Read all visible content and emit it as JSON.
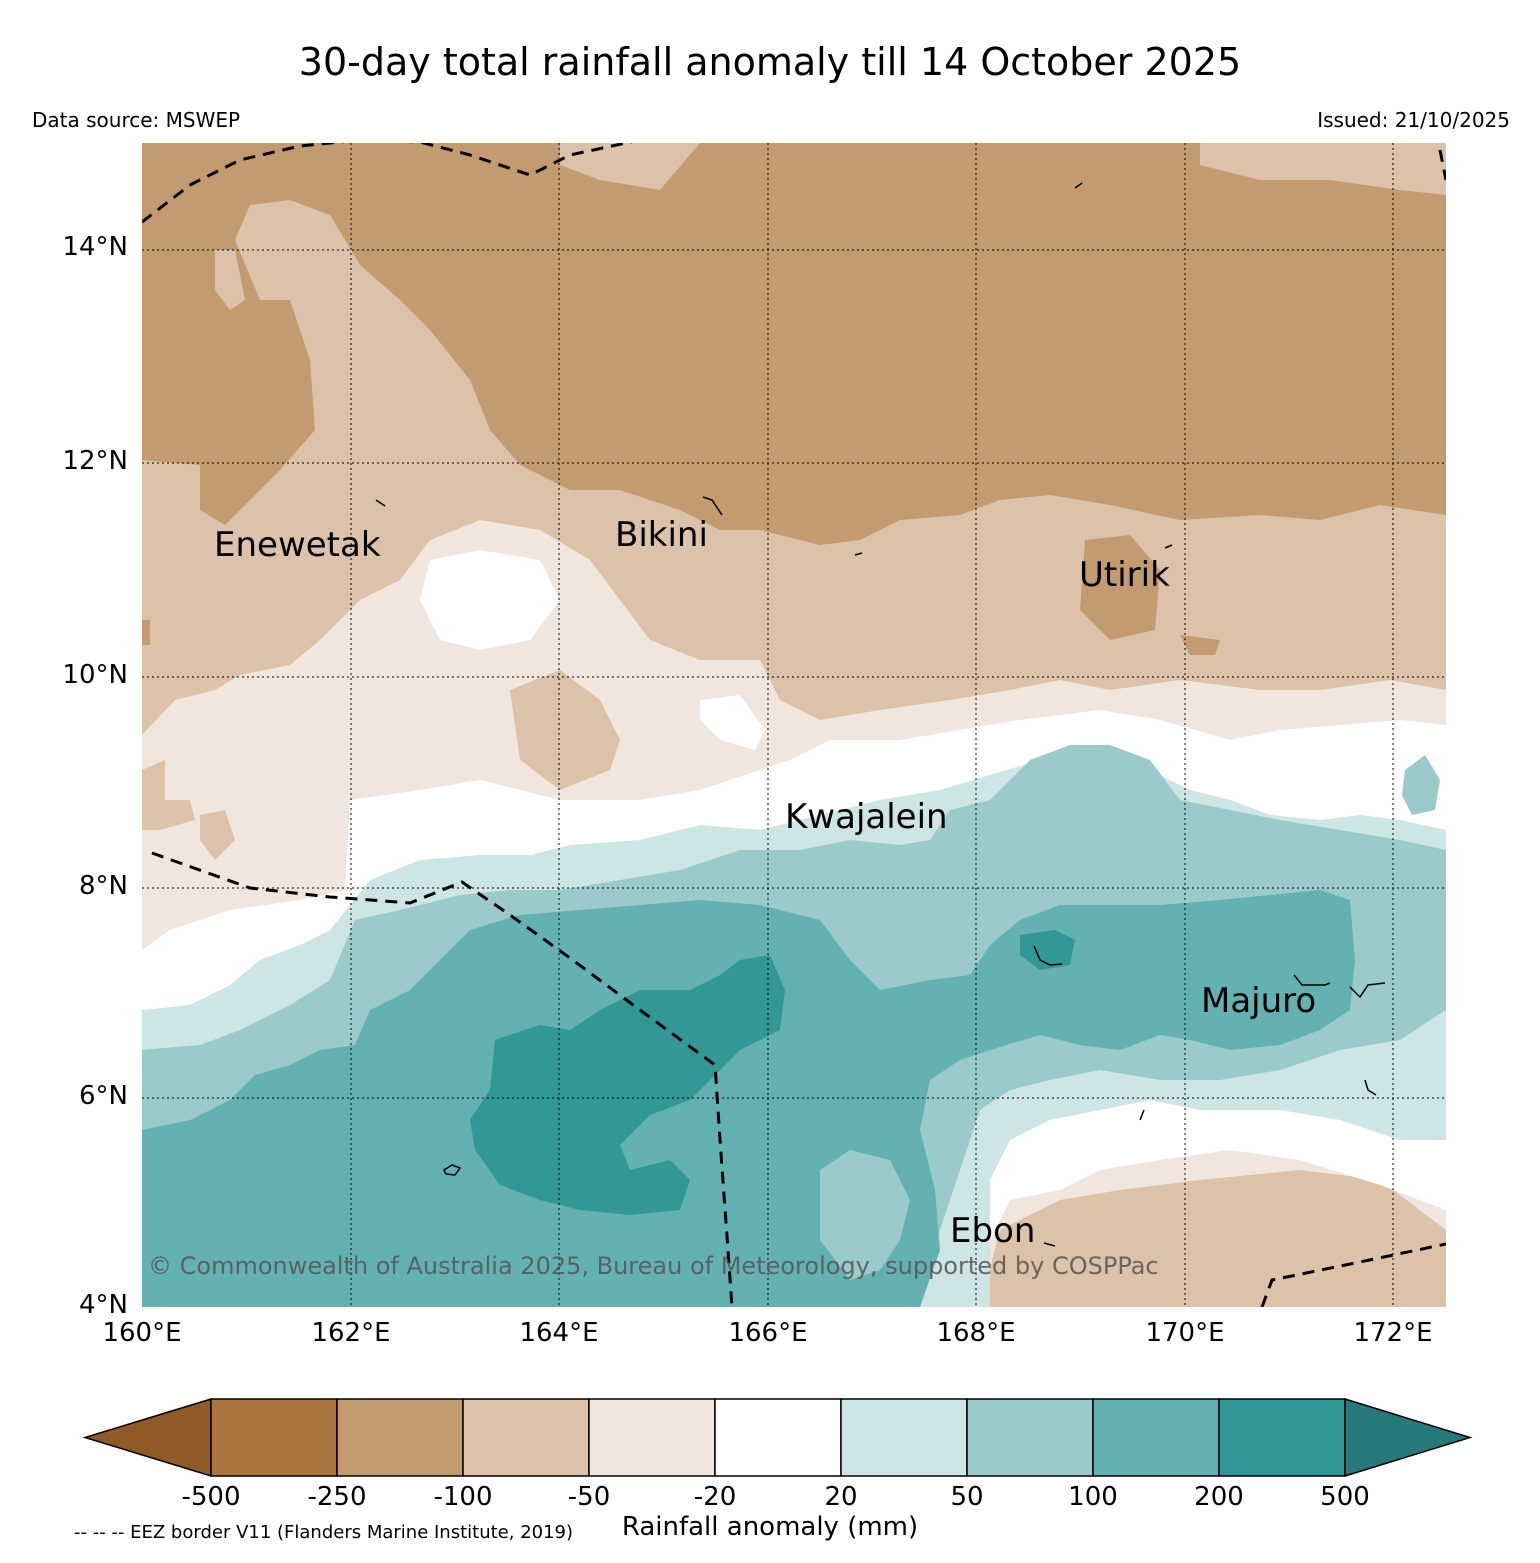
{
  "title": "30-day total rainfall anomaly till 14 October 2025",
  "data_source": "Data source: MSWEP",
  "issued": "Issued: 21/10/2025",
  "copyright": "© Commonwealth of Australia 2025, Bureau of Meteorology, supported by COSPPac",
  "eez_note": "-- -- -- EEZ border V11 (Flanders Marine Institute, 2019)",
  "axes": {
    "lat_ticks": [
      "14°N",
      "12°N",
      "10°N",
      "8°N",
      "6°N",
      "4°N"
    ],
    "lon_ticks": [
      "160°E",
      "162°E",
      "164°E",
      "166°E",
      "168°E",
      "170°E",
      "172°E"
    ]
  },
  "places": {
    "enewetak": "Enewetak",
    "bikini": "Bikini",
    "utirik": "Utirik",
    "kwajalein": "Kwajalein",
    "majuro": "Majuro",
    "ebon": "Ebon"
  },
  "colorbar": {
    "title": "Rainfall anomaly (mm)",
    "ticks": [
      "-500",
      "-250",
      "-100",
      "-50",
      "-20",
      "20",
      "50",
      "100",
      "200",
      "500"
    ],
    "colors": [
      "#8f5a26",
      "#ab753f",
      "#c39b71",
      "#dbc2a9",
      "#f1e6dd",
      "#ffffff",
      "#cde5e5",
      "#9bcacb",
      "#63b1b1",
      "#319895",
      "#257a79"
    ]
  }
}
